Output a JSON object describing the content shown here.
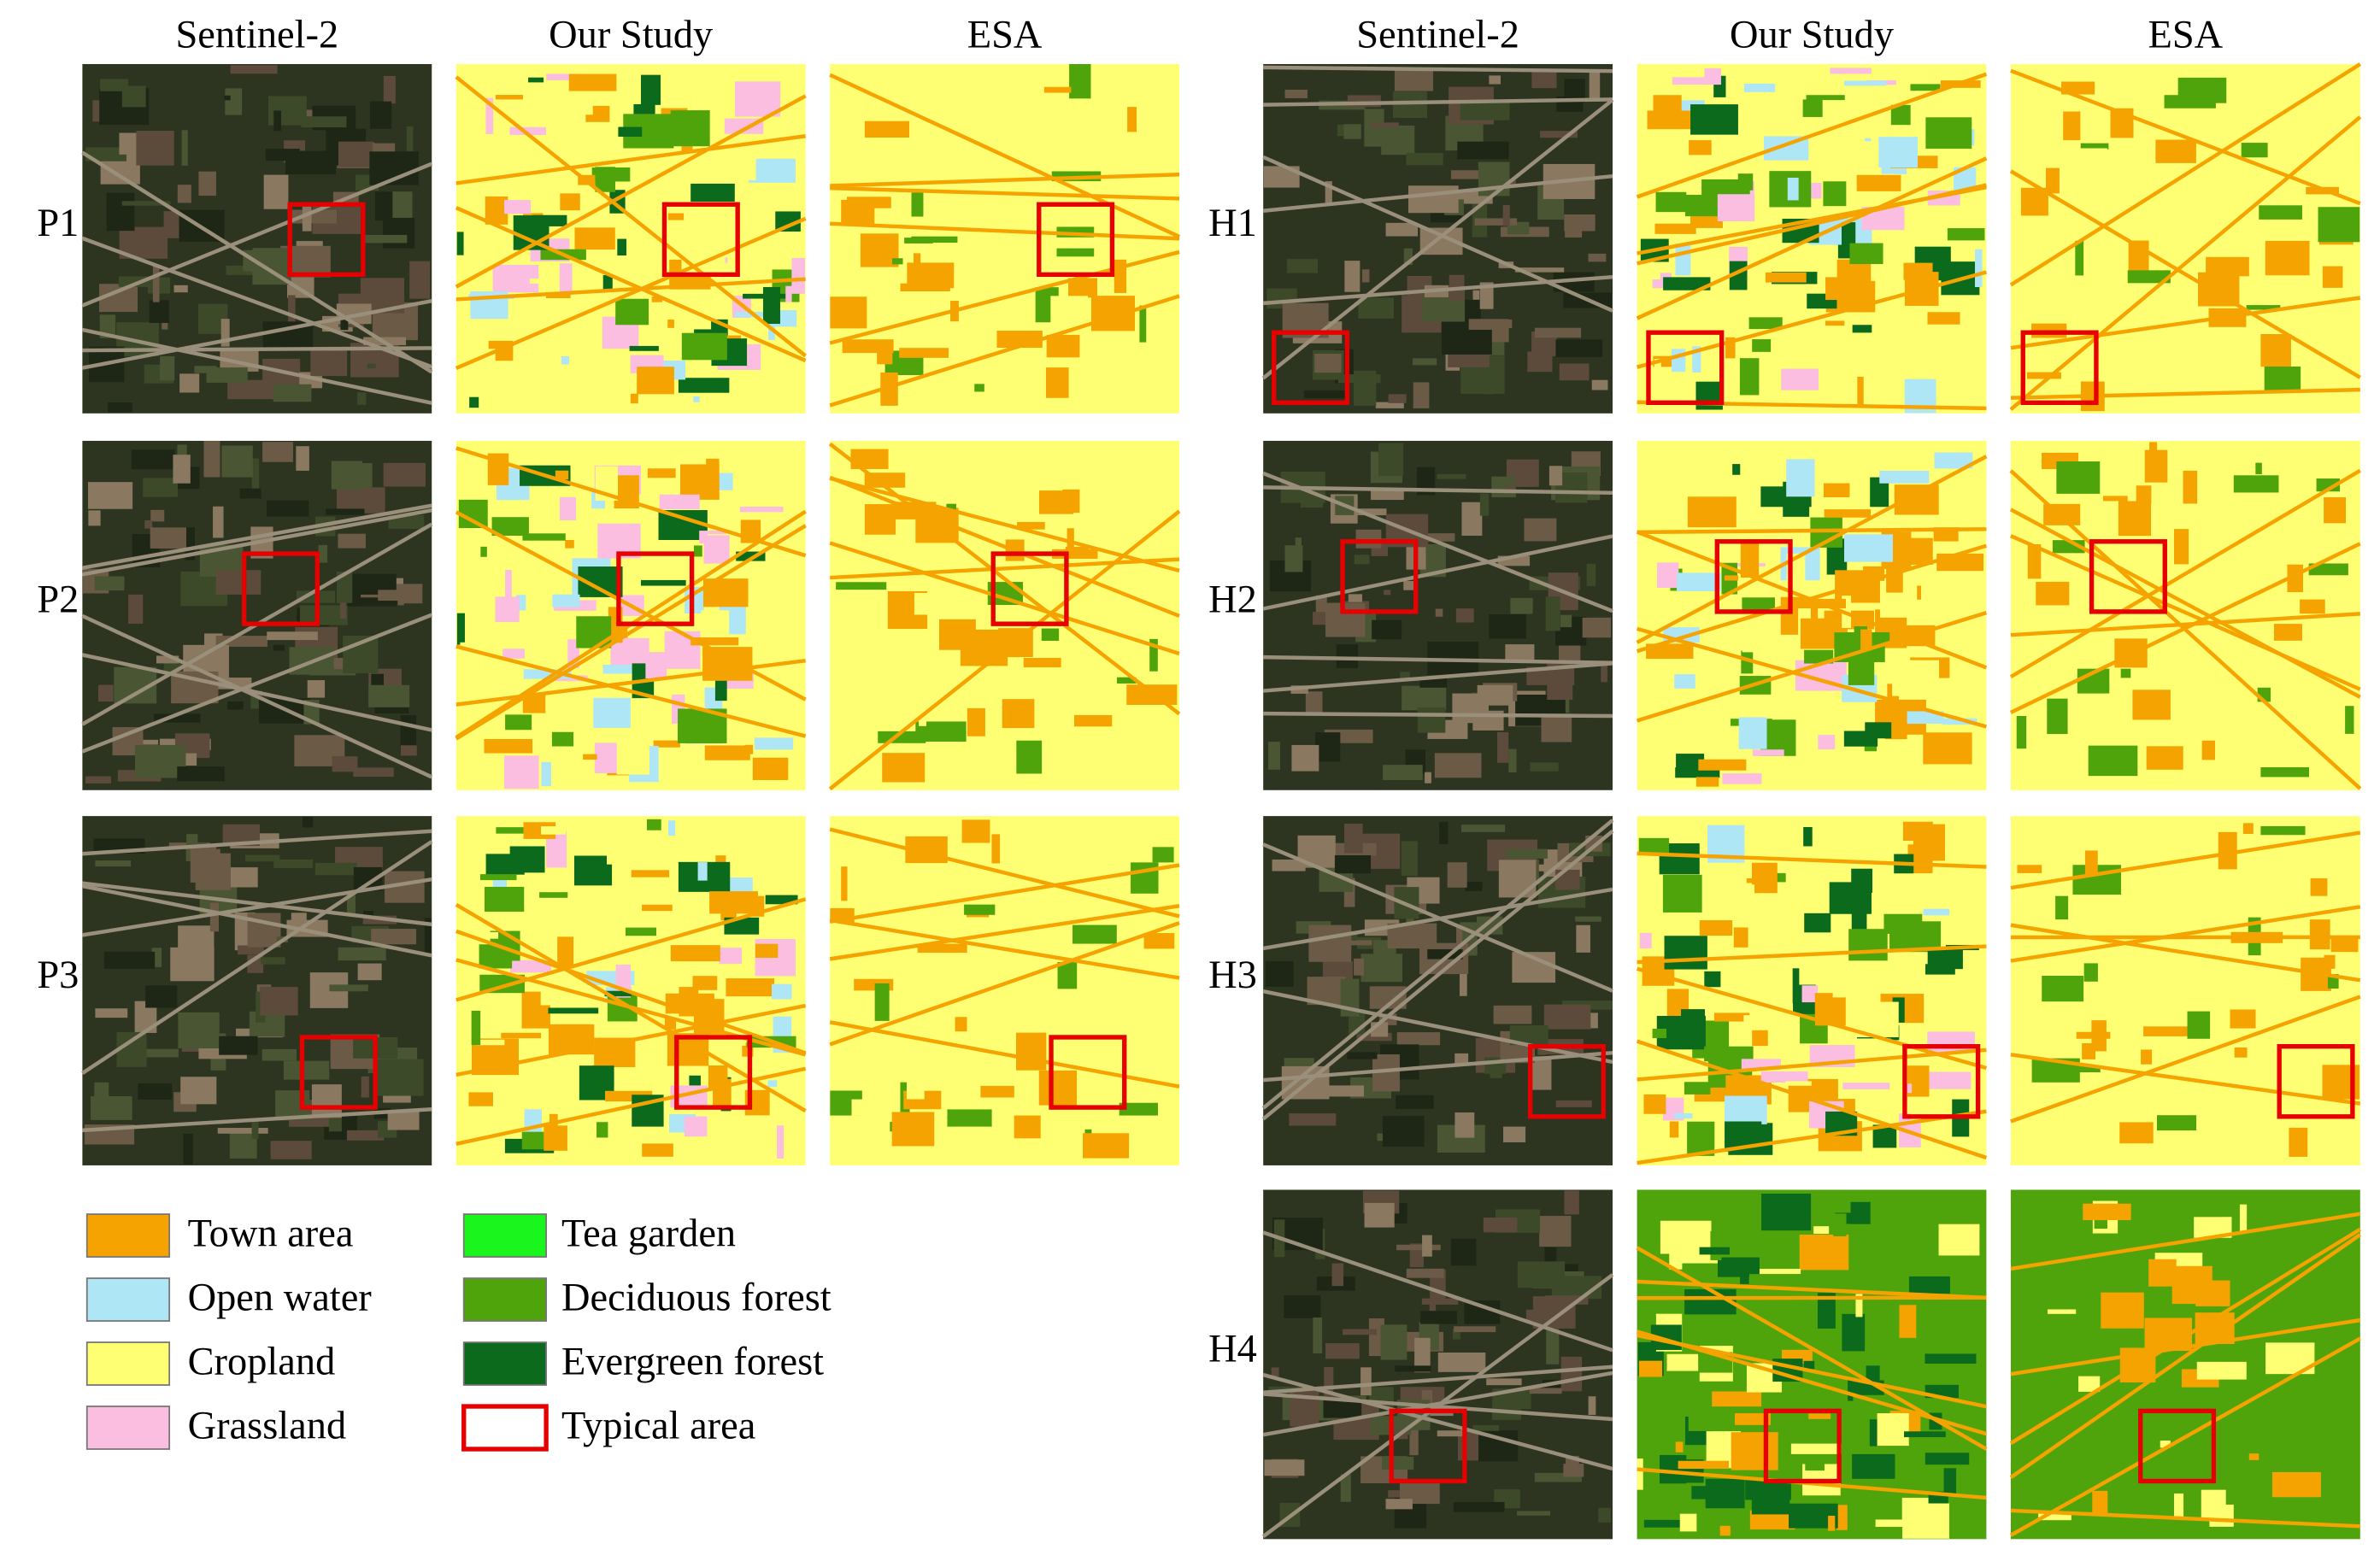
{
  "columns": {
    "left": [
      "Sentinel-2",
      "Our Study",
      "ESA"
    ],
    "right": [
      "Sentinel-2",
      "Our Study",
      "ESA"
    ]
  },
  "rows": {
    "left": [
      "P1",
      "P2",
      "P3"
    ],
    "right": [
      "H1",
      "H2",
      "H3",
      "H4"
    ]
  },
  "legend": {
    "left": [
      "Town area",
      "Open water",
      "Cropland",
      "Grassland"
    ],
    "right": [
      "Tea garden",
      "Deciduous forest",
      "Evergreen forest",
      "Typical area"
    ]
  }
}
